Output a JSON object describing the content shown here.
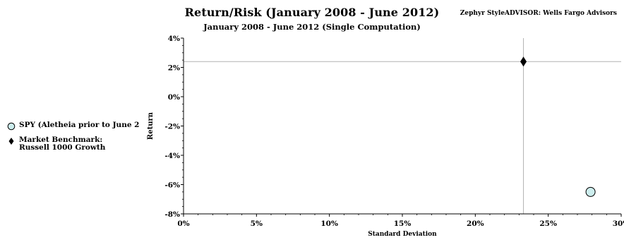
{
  "header": {
    "title": "Return/Risk (January 2008 - June 2012)",
    "subtitle": "January 2008 - June 2012 (Single Computation)",
    "credit": "Zephyr StyleADVISOR: Wells Fargo Advisors"
  },
  "legend": {
    "items": [
      {
        "label": "SPY (Aletheia prior to June 2",
        "marker": "circle",
        "color": "#cdeeee"
      },
      {
        "label": "Market Benchmark:\nRussell 1000 Growth",
        "marker": "diamond",
        "color": "#000000"
      }
    ]
  },
  "chart_data": {
    "type": "scatter",
    "title": "Return/Risk (January 2008 - June 2012)",
    "subtitle": "January 2008 - June 2012 (Single Computation)",
    "xlabel": "Standard Deviation",
    "ylabel": "Return",
    "xlim": [
      0,
      30
    ],
    "ylim": [
      -8,
      4
    ],
    "x_ticks": [
      0,
      5,
      10,
      15,
      20,
      25,
      30
    ],
    "x_tick_labels": [
      "0%",
      "5%",
      "10%",
      "15%",
      "20%",
      "25%",
      "30%"
    ],
    "y_ticks": [
      4,
      2,
      0,
      -2,
      -4,
      -6,
      -8
    ],
    "y_tick_labels": [
      "4%",
      "2%",
      "0%",
      "-2%",
      "-4%",
      "-6%",
      "-8%"
    ],
    "grid": false,
    "legend_position": "left",
    "series": [
      {
        "name": "SPY (Aletheia prior to June 2",
        "marker": "circle",
        "color": "#cdeeee",
        "points": [
          {
            "x": 27.9,
            "y": -6.5
          }
        ]
      },
      {
        "name": "Market Benchmark: Russell 1000 Growth",
        "marker": "diamond",
        "color": "#000000",
        "points": [
          {
            "x": 23.3,
            "y": 2.4
          }
        ]
      }
    ],
    "reference_lines": {
      "x": 23.3,
      "y": 2.4
    }
  }
}
